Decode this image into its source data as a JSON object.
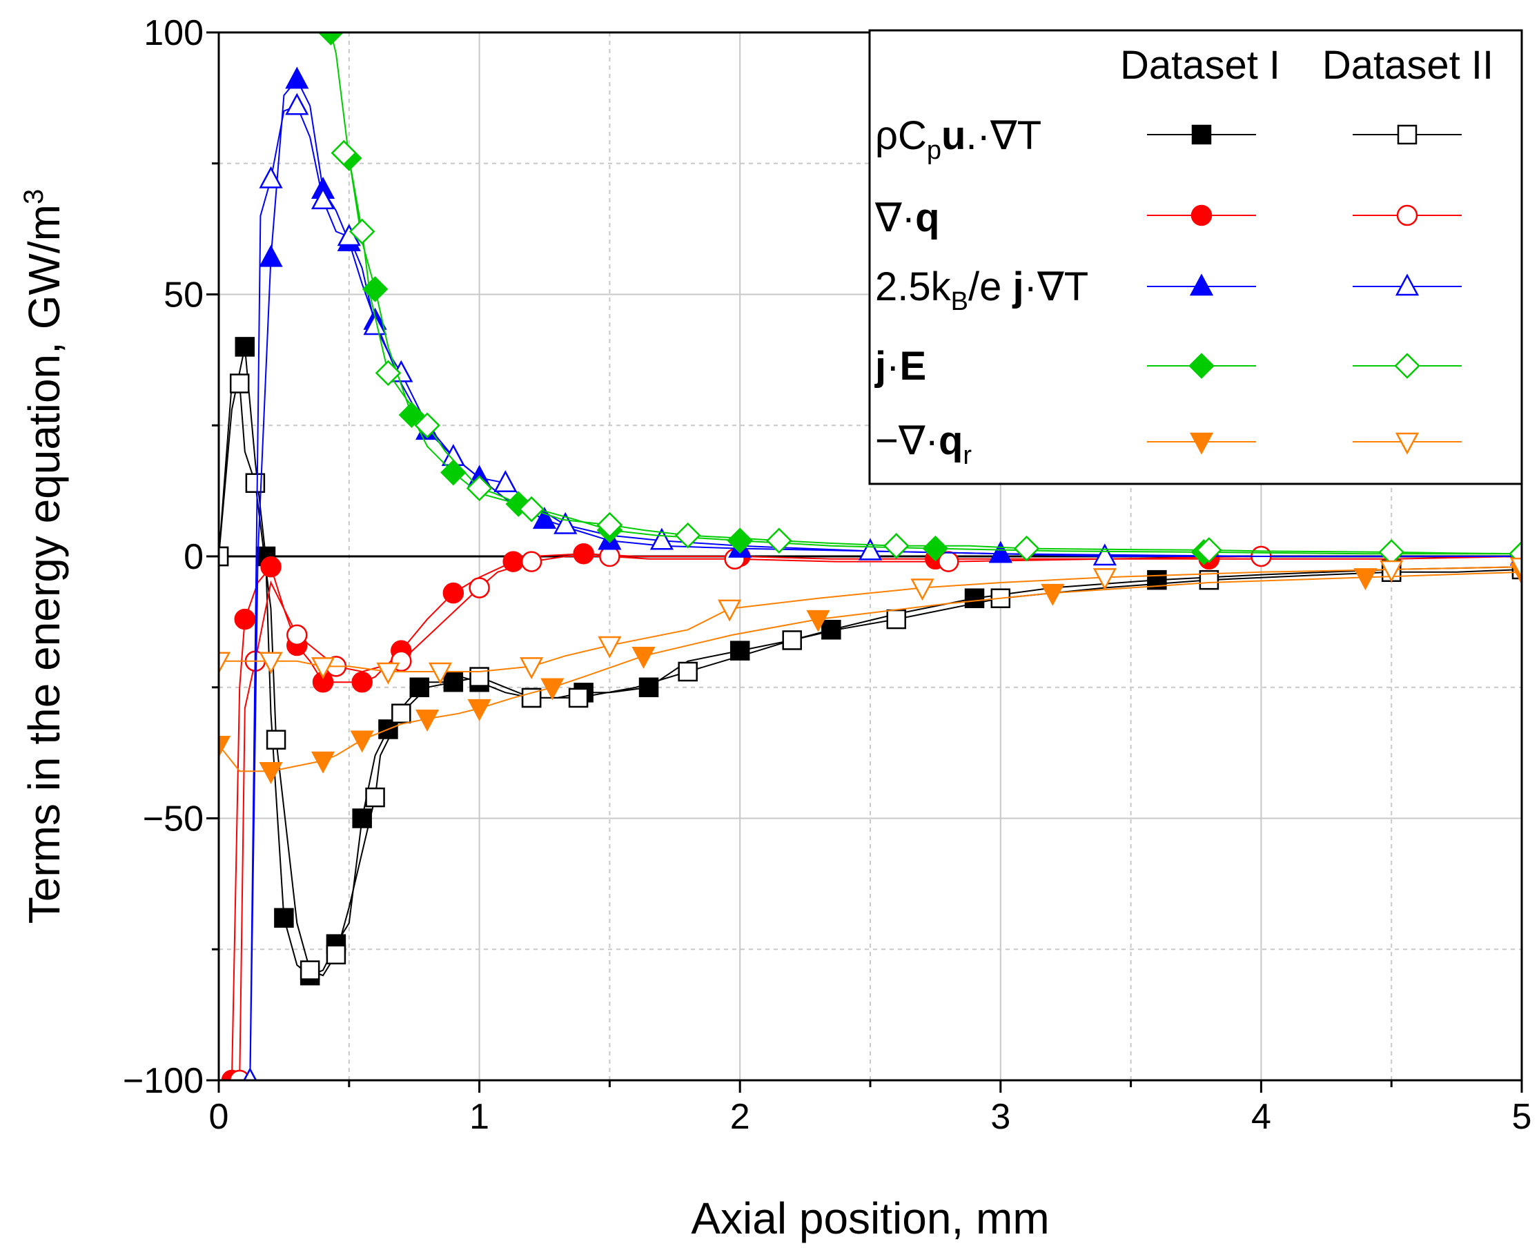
{
  "chart_data": {
    "type": "line",
    "title": "",
    "xlabel": "Axial position, mm",
    "ylabel": "Terms in the energy equation, GW/m",
    "ylabel_superscript": "3",
    "xlim": [
      0,
      5
    ],
    "ylim": [
      -100,
      100
    ],
    "x_ticks": [
      "0",
      "1",
      "2",
      "3",
      "4",
      "5"
    ],
    "y_ticks": [
      "-100",
      "-50",
      "0",
      "50",
      "100"
    ],
    "grid": true,
    "legend_placement": "top-right",
    "legend_headers": [
      "Dataset I",
      "Dataset II"
    ],
    "legend_rows": [
      {
        "key": "conv",
        "color": "#000000",
        "marker": "square"
      },
      {
        "key": "divq",
        "color": "#ff0000",
        "marker": "circle"
      },
      {
        "key": "enth",
        "color": "#0000ff",
        "marker": "triangle-up"
      },
      {
        "key": "joule",
        "color": "#00cc00",
        "marker": "diamond"
      },
      {
        "key": "rad",
        "color": "#ff8000",
        "marker": "triangle-down"
      }
    ],
    "legend_labels": {
      "conv": {
        "a": "ρC",
        "b": "p",
        "c": "u",
        "d": ".·∇T"
      },
      "divq": {
        "a": "∇·",
        "b": "q"
      },
      "enth": {
        "a": "2.5k",
        "b": "B",
        "c": "/e ",
        "d": "j",
        "e": "·∇T"
      },
      "joule": {
        "a": "j",
        "b": "·",
        "c": "E"
      },
      "rad": {
        "a": "−∇·",
        "b": "q",
        "c": "r"
      }
    },
    "series": [
      {
        "key": "conv",
        "dataset": "Dataset I",
        "color": "#000000",
        "marker": "square",
        "filled": true,
        "x": [
          0.0,
          0.05,
          0.1,
          0.14,
          0.18,
          0.2,
          0.25,
          0.3,
          0.35,
          0.4,
          0.45,
          0.5,
          0.55,
          0.6,
          0.65,
          0.7,
          0.77,
          0.8,
          0.9,
          0.93,
          1.0,
          1.1,
          1.2,
          1.3,
          1.4,
          1.5,
          1.65,
          1.8,
          2.0,
          2.2,
          2.35,
          2.6,
          2.9,
          3.2,
          3.6,
          4.0,
          4.5,
          5.0
        ],
        "y": [
          0,
          28,
          40,
          18,
          0,
          -30,
          -69,
          -78,
          -80,
          -79,
          -74,
          -70,
          -50,
          -38,
          -33,
          -29,
          -25,
          -24,
          -24,
          -23,
          -24,
          -26,
          -27,
          -27,
          -26,
          -26,
          -25,
          -20,
          -18,
          -16,
          -14,
          -11,
          -8,
          -6,
          -4.5,
          -3.5,
          -2.5,
          -2
        ]
      },
      {
        "key": "conv",
        "dataset": "Dataset II",
        "color": "#000000",
        "marker": "square",
        "filled": false,
        "x": [
          0.0,
          0.05,
          0.08,
          0.1,
          0.14,
          0.2,
          0.22,
          0.3,
          0.35,
          0.4,
          0.45,
          0.5,
          0.6,
          0.62,
          0.7,
          0.8,
          1.0,
          1.1,
          1.2,
          1.3,
          1.38,
          1.6,
          1.8,
          2.07,
          2.2,
          2.37,
          2.6,
          2.7,
          3.0,
          3.4,
          3.8,
          4.25,
          4.5,
          4.75,
          5.0
        ],
        "y": [
          0,
          33,
          33,
          20,
          14,
          -10,
          -35,
          -70,
          -79,
          -80,
          -76,
          -67,
          -46,
          -38,
          -30,
          -25,
          -23,
          -25,
          -27,
          -27,
          -27,
          -25,
          -22,
          -18,
          -16,
          -14,
          -12,
          -11,
          -8,
          -6,
          -4.5,
          -3.5,
          -3,
          -3,
          -2.5
        ]
      },
      {
        "key": "divq",
        "dataset": "Dataset I",
        "color": "#ff0000",
        "marker": "circle",
        "filled": true,
        "x": [
          0.05,
          0.08,
          0.1,
          0.15,
          0.2,
          0.25,
          0.3,
          0.35,
          0.4,
          0.45,
          0.55,
          0.6,
          0.7,
          0.8,
          0.9,
          1.0,
          1.13,
          1.2,
          1.4,
          1.6,
          2.0,
          2.35,
          2.75,
          3.25,
          3.8,
          4.5,
          5.0
        ],
        "y": [
          -100,
          -25,
          -12,
          -5,
          -2,
          -10,
          -17,
          -20,
          -24,
          -24,
          -24,
          -23,
          -18,
          -12,
          -7,
          -4,
          -1,
          0,
          0.5,
          0,
          0,
          -0.5,
          -0.5,
          -0.5,
          -0.5,
          -0.5,
          0
        ]
      },
      {
        "key": "divq",
        "dataset": "Dataset II",
        "color": "#ff0000",
        "marker": "circle",
        "filled": false,
        "x": [
          0.08,
          0.1,
          0.14,
          0.2,
          0.3,
          0.35,
          0.45,
          0.55,
          0.7,
          0.85,
          1.0,
          1.07,
          1.2,
          1.33,
          1.5,
          1.65,
          1.98,
          2.37,
          2.8,
          3.4,
          4.0,
          4.5,
          5.0
        ],
        "y": [
          -100,
          -29,
          -20,
          -5,
          -15,
          -17,
          -21,
          -22,
          -20,
          -13,
          -6,
          -3,
          -1,
          0,
          0,
          -0.5,
          -0.5,
          -1,
          -1,
          -0.5,
          0,
          0,
          0
        ]
      },
      {
        "key": "enth",
        "dataset": "Dataset I",
        "color": "#0000ff",
        "marker": "triangle-up",
        "filled": true,
        "x": [
          0.12,
          0.15,
          0.2,
          0.25,
          0.3,
          0.35,
          0.4,
          0.45,
          0.5,
          0.55,
          0.6,
          0.7,
          0.8,
          0.9,
          1.0,
          1.1,
          1.25,
          1.37,
          1.5,
          1.7,
          2.0,
          2.5,
          3.0,
          4.0,
          5.0
        ],
        "y": [
          -100,
          0,
          57,
          88,
          91,
          86,
          70,
          66,
          60,
          52,
          45,
          33,
          24,
          19,
          15,
          11,
          7,
          5,
          3,
          2,
          1.5,
          1,
          0.5,
          0,
          0
        ]
      },
      {
        "key": "enth",
        "dataset": "Dataset II",
        "color": "#0000ff",
        "marker": "triangle-up",
        "filled": false,
        "x": [
          0.12,
          0.16,
          0.2,
          0.25,
          0.3,
          0.35,
          0.4,
          0.45,
          0.5,
          0.55,
          0.6,
          0.65,
          0.7,
          0.8,
          0.9,
          1.0,
          1.1,
          1.2,
          1.33,
          1.5,
          1.7,
          2.0,
          2.5,
          3.0,
          3.4,
          4.0,
          5.0
        ],
        "y": [
          -100,
          65,
          72,
          85,
          86,
          80,
          68,
          62,
          61,
          55,
          44,
          39,
          35,
          25,
          19,
          15,
          14,
          10,
          6,
          4,
          3,
          2,
          1,
          0.5,
          0,
          0,
          0
        ]
      },
      {
        "key": "joule",
        "dataset": "Dataset I",
        "color": "#00cc00",
        "marker": "diamond",
        "filled": true,
        "x": [
          0.43,
          0.45,
          0.5,
          0.55,
          0.6,
          0.65,
          0.74,
          0.8,
          0.9,
          1.0,
          1.15,
          1.37,
          1.5,
          1.68,
          2.0,
          2.35,
          2.75,
          3.24,
          3.78,
          4.4,
          5.0
        ],
        "y": [
          100,
          96,
          76,
          60,
          51,
          40,
          27,
          21,
          16,
          12,
          10,
          7,
          5,
          4,
          3,
          2,
          1.5,
          1,
          0.8,
          0.5,
          0.5
        ]
      },
      {
        "key": "joule",
        "dataset": "Dataset II",
        "color": "#00cc00",
        "marker": "diamond",
        "filled": false,
        "x": [
          0.48,
          0.5,
          0.55,
          0.58,
          0.65,
          0.72,
          0.8,
          0.87,
          1.0,
          1.06,
          1.2,
          1.32,
          1.5,
          1.63,
          1.8,
          1.99,
          2.15,
          2.35,
          2.6,
          2.88,
          3.1,
          3.5,
          3.8,
          4.0,
          4.5,
          4.75,
          5.0
        ],
        "y": [
          77,
          76,
          62,
          50,
          35,
          30,
          25,
          20,
          13,
          12,
          9,
          7,
          6,
          5,
          4,
          3.5,
          3,
          2.5,
          2,
          2,
          1.5,
          1.3,
          1.2,
          1,
          0.8,
          0.6,
          0.5
        ]
      },
      {
        "key": "rad",
        "dataset": "Dataset I",
        "color": "#ff8000",
        "marker": "triangle-down",
        "filled": true,
        "x": [
          0.0,
          0.08,
          0.2,
          0.3,
          0.4,
          0.45,
          0.55,
          0.7,
          0.8,
          0.92,
          1.0,
          1.13,
          1.28,
          1.4,
          1.63,
          1.97,
          2.3,
          2.8,
          3.2,
          3.8,
          4.4,
          5.0
        ],
        "y": [
          -36,
          -41,
          -41,
          -40,
          -39,
          -38,
          -35,
          -32,
          -31,
          -30,
          -29,
          -27,
          -25,
          -23,
          -19,
          -15,
          -12,
          -9,
          -7,
          -5,
          -4,
          -3
        ]
      },
      {
        "key": "rad",
        "dataset": "Dataset II",
        "color": "#ff8000",
        "marker": "triangle-down",
        "filled": false,
        "x": [
          0.0,
          0.1,
          0.2,
          0.3,
          0.4,
          0.5,
          0.65,
          0.75,
          0.85,
          1.0,
          1.2,
          1.33,
          1.5,
          1.8,
          1.96,
          2.3,
          2.7,
          3.0,
          3.4,
          4.0,
          4.5,
          5.0
        ],
        "y": [
          -20,
          -20,
          -20,
          -20,
          -21,
          -21,
          -22,
          -22,
          -22,
          -22,
          -21,
          -19,
          -17,
          -14,
          -10,
          -8,
          -6,
          -5,
          -4,
          -3,
          -2.5,
          -2
        ]
      }
    ]
  }
}
